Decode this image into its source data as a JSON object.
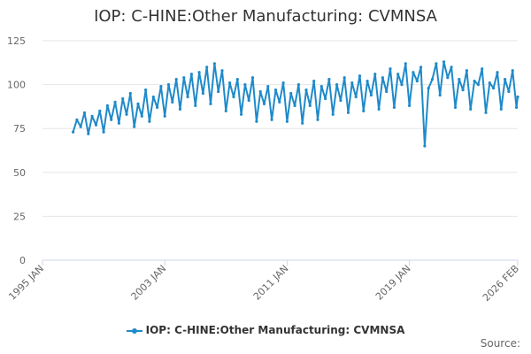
{
  "chart_data": {
    "type": "line",
    "title": "IOP: C-HINE:Other Manufacturing: CVMNSA",
    "xlabel": "",
    "ylabel": "",
    "ylim": [
      0,
      125
    ],
    "yticks": [
      "0",
      "25",
      "50",
      "75",
      "100",
      "125"
    ],
    "xticks": [
      "1995 JAN",
      "2003 JAN",
      "2011 JAN",
      "2019 JAN",
      "2026 FEB"
    ],
    "grid": true,
    "legend_position": "bottom",
    "color": "#1f8ac9",
    "series": [
      {
        "name": "IOP: C-HINE:Other Manufacturing: CVMNSA",
        "x": [
          "1997-01",
          "1997-04",
          "1997-07",
          "1997-10",
          "1998-01",
          "1998-04",
          "1998-07",
          "1998-10",
          "1999-01",
          "1999-04",
          "1999-07",
          "1999-10",
          "2000-01",
          "2000-04",
          "2000-07",
          "2000-10",
          "2001-01",
          "2001-04",
          "2001-07",
          "2001-10",
          "2002-01",
          "2002-04",
          "2002-07",
          "2002-10",
          "2003-01",
          "2003-04",
          "2003-07",
          "2003-10",
          "2004-01",
          "2004-04",
          "2004-07",
          "2004-10",
          "2005-01",
          "2005-04",
          "2005-07",
          "2005-10",
          "2006-01",
          "2006-04",
          "2006-07",
          "2006-10",
          "2007-01",
          "2007-04",
          "2007-07",
          "2007-10",
          "2008-01",
          "2008-04",
          "2008-07",
          "2008-10",
          "2009-01",
          "2009-04",
          "2009-07",
          "2009-10",
          "2010-01",
          "2010-04",
          "2010-07",
          "2010-10",
          "2011-01",
          "2011-04",
          "2011-07",
          "2011-10",
          "2012-01",
          "2012-04",
          "2012-07",
          "2012-10",
          "2013-01",
          "2013-04",
          "2013-07",
          "2013-10",
          "2014-01",
          "2014-04",
          "2014-07",
          "2014-10",
          "2015-01",
          "2015-04",
          "2015-07",
          "2015-10",
          "2016-01",
          "2016-04",
          "2016-07",
          "2016-10",
          "2017-01",
          "2017-04",
          "2017-07",
          "2017-10",
          "2018-01",
          "2018-04",
          "2018-07",
          "2018-10",
          "2019-01",
          "2019-04",
          "2019-07",
          "2019-10",
          "2020-01",
          "2020-04",
          "2020-07",
          "2020-10",
          "2021-01",
          "2021-04",
          "2021-07",
          "2021-10",
          "2022-01",
          "2022-04",
          "2022-07",
          "2022-10",
          "2023-01",
          "2023-04",
          "2023-07",
          "2023-10",
          "2024-01",
          "2024-04",
          "2024-07",
          "2024-10",
          "2025-01",
          "2025-04",
          "2025-07",
          "2025-10",
          "2026-01",
          "2026-02"
        ],
        "values": [
          73,
          80,
          76,
          84,
          72,
          82,
          77,
          85,
          73,
          88,
          80,
          90,
          78,
          92,
          83,
          95,
          76,
          89,
          82,
          97,
          79,
          93,
          87,
          99,
          82,
          100,
          90,
          103,
          86,
          104,
          93,
          106,
          88,
          107,
          95,
          110,
          89,
          112,
          96,
          108,
          85,
          101,
          93,
          103,
          83,
          100,
          91,
          104,
          79,
          96,
          89,
          99,
          80,
          97,
          90,
          101,
          79,
          95,
          88,
          100,
          78,
          97,
          88,
          102,
          80,
          99,
          92,
          103,
          83,
          100,
          91,
          104,
          84,
          101,
          93,
          105,
          85,
          102,
          94,
          106,
          86,
          104,
          96,
          109,
          87,
          106,
          100,
          112,
          88,
          107,
          102,
          110,
          65,
          98,
          103,
          112,
          94,
          113,
          104,
          110,
          87,
          103,
          97,
          108,
          86,
          102,
          100,
          109,
          84,
          101,
          98,
          107,
          86,
          103,
          96,
          108,
          87,
          93
        ]
      }
    ],
    "credit": "Source:"
  }
}
